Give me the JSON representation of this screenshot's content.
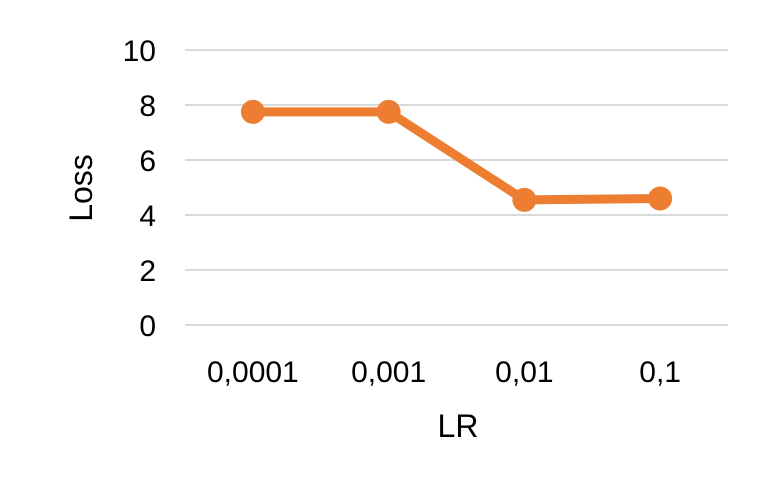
{
  "chart_data": {
    "type": "line",
    "categories": [
      "0,0001",
      "0,001",
      "0,01",
      "0,1"
    ],
    "series": [
      {
        "values": [
          7.75,
          7.75,
          4.55,
          4.6
        ]
      }
    ],
    "xlabel": "LR",
    "ylabel": "Loss",
    "ylim": [
      0,
      10
    ],
    "yticks": [
      "0",
      "2",
      "4",
      "6",
      "8",
      "10"
    ],
    "grid": true,
    "colors": {
      "series": "#ed7d31",
      "grid": "#d9d9d9"
    }
  }
}
